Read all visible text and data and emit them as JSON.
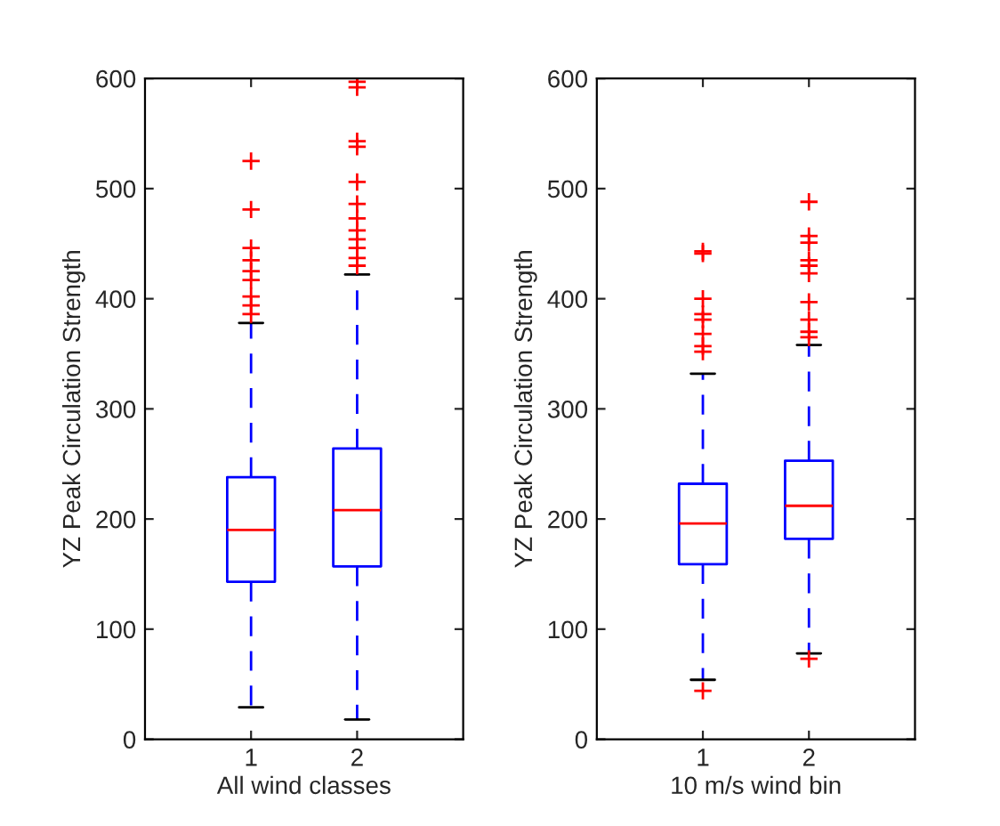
{
  "chart_data": [
    {
      "type": "box",
      "xlabel": "All wind classes",
      "ylabel": "YZ Peak Circulation Strength",
      "categories": [
        "1",
        "2"
      ],
      "ylim": [
        0,
        600
      ],
      "yticks": [
        0,
        100,
        200,
        300,
        400,
        500,
        600
      ],
      "grid": false,
      "legend": false,
      "marker": "cross",
      "color": "#0000ff",
      "boxes": [
        {
          "low": 29,
          "q1": 143,
          "median": 190,
          "q3": 238,
          "high": 378,
          "outliers": [
            525,
            481,
            446,
            435,
            425,
            417,
            402,
            394,
            386
          ]
        },
        {
          "low": 18,
          "q1": 157,
          "median": 208,
          "q3": 264,
          "high": 422,
          "outliers": [
            597,
            592,
            543,
            538,
            506,
            486,
            473,
            462,
            454,
            446,
            437,
            430
          ]
        }
      ]
    },
    {
      "type": "box",
      "xlabel": "10 m/s wind bin",
      "ylabel": "YZ Peak Circulation Strength",
      "categories": [
        "1",
        "2"
      ],
      "ylim": [
        0,
        600
      ],
      "yticks": [
        0,
        100,
        200,
        300,
        400,
        500,
        600
      ],
      "grid": false,
      "legend": false,
      "marker": "cross",
      "color": "#0000ff",
      "boxes": [
        {
          "low": 54,
          "q1": 159,
          "median": 196,
          "q3": 232,
          "high": 332,
          "outliers": [
            44,
            443,
            441,
            400,
            386,
            381,
            368,
            357,
            352
          ]
        },
        {
          "low": 78,
          "q1": 182,
          "median": 212,
          "q3": 253,
          "high": 358,
          "outliers": [
            73,
            488,
            457,
            451,
            435,
            430,
            423,
            397,
            381,
            370,
            365
          ]
        }
      ]
    }
  ]
}
